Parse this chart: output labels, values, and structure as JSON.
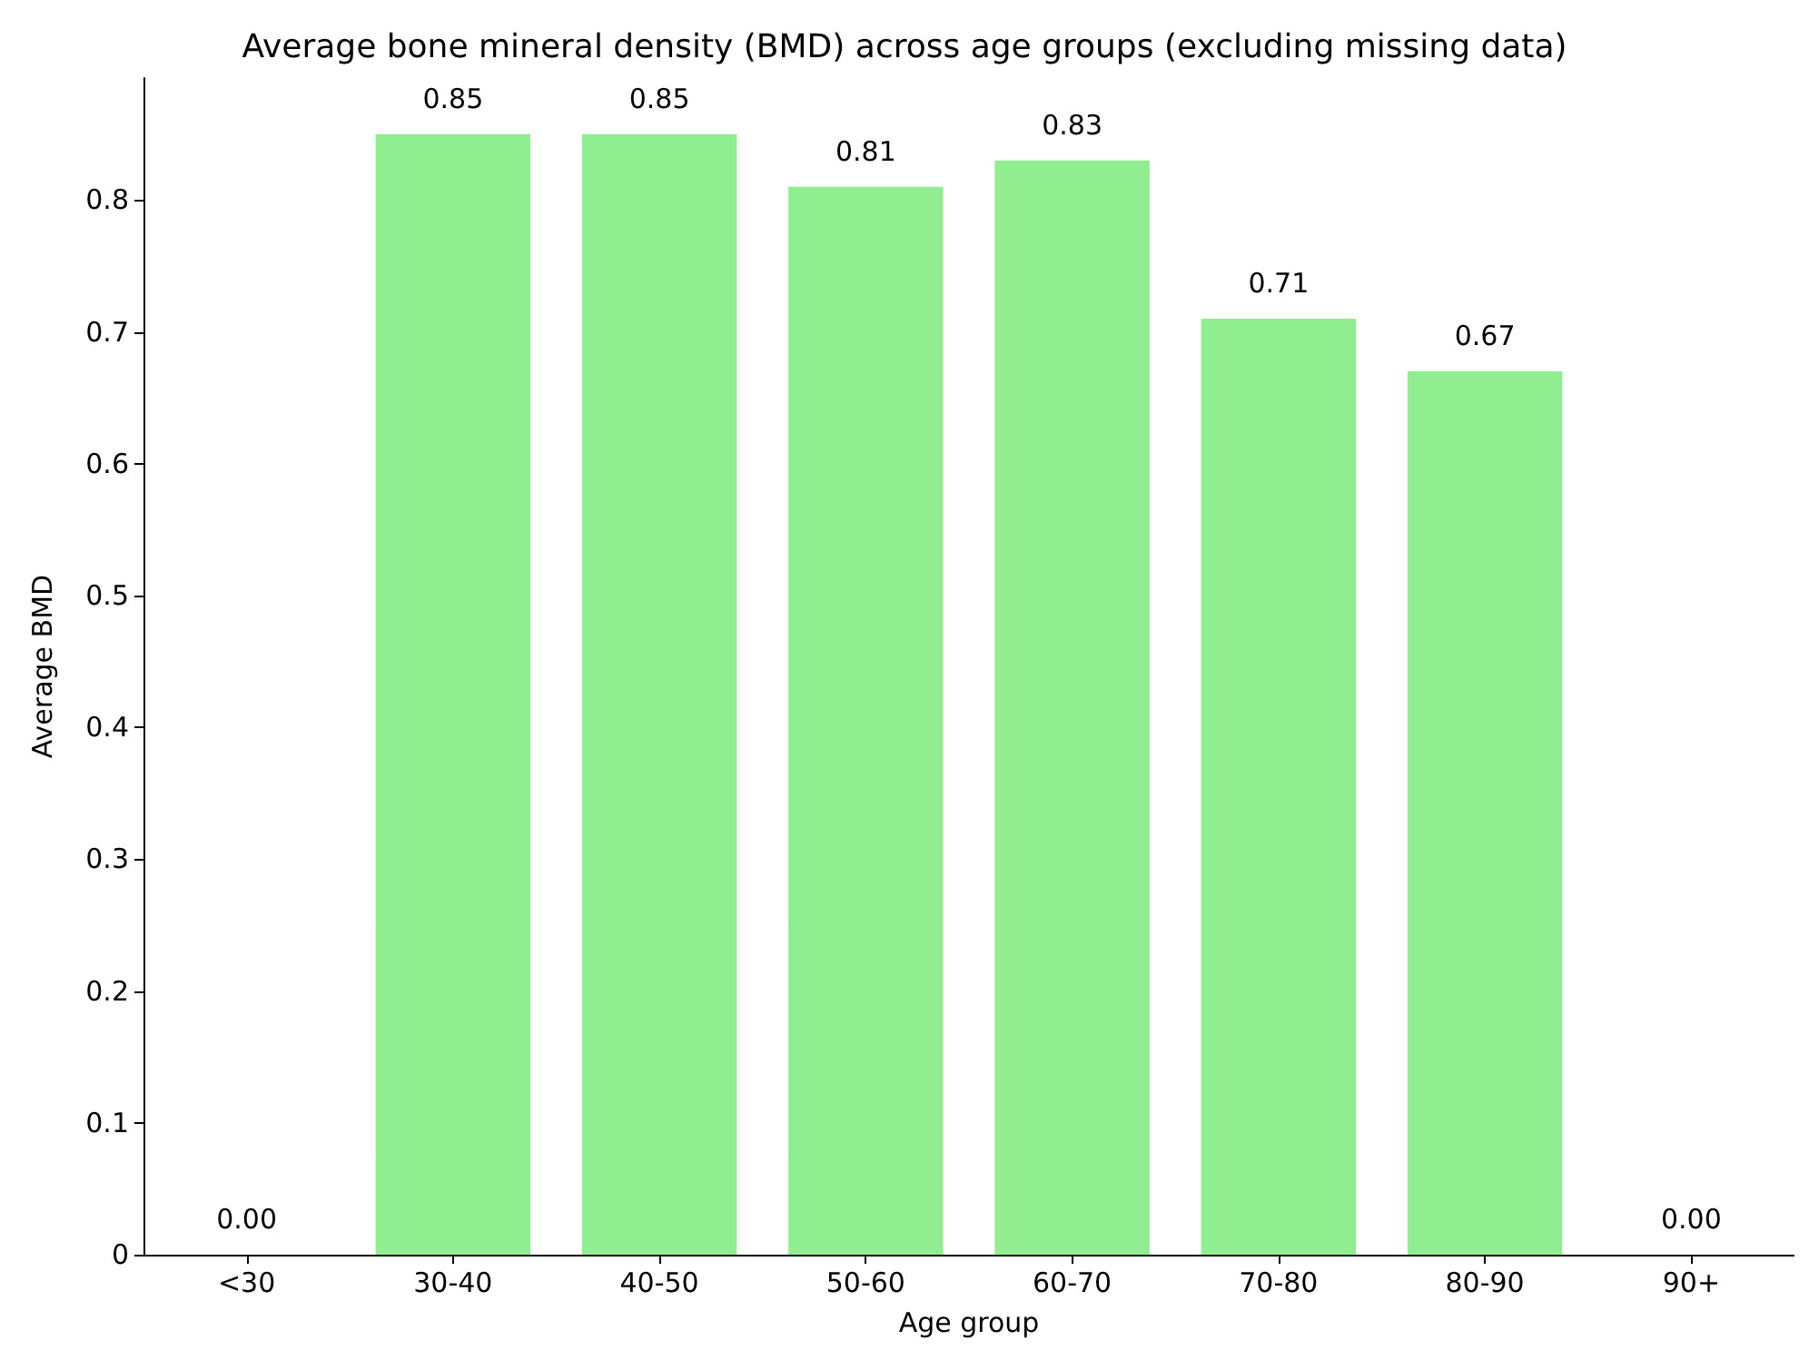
{
  "chart_data": {
    "type": "bar",
    "title": "Average bone mineral density (BMD) across age groups (excluding missing data)",
    "xlabel": "Age group",
    "ylabel": "Average BMD",
    "categories": [
      "<30",
      "30-40",
      "40-50",
      "50-60",
      "60-70",
      "70-80",
      "80-90",
      "90+"
    ],
    "values": [
      0,
      0.85,
      0.85,
      0.81,
      0.83,
      0.71,
      0.67,
      0
    ],
    "value_labels": [
      "0.00",
      "0.85",
      "0.85",
      "0.81",
      "0.83",
      "0.71",
      "0.67",
      "0.00"
    ],
    "color": "#90ee90",
    "ylim": [
      0,
      0.8925
    ],
    "yticks": [
      0,
      0.1,
      0.2,
      0.3,
      0.4,
      0.5,
      0.6,
      0.7,
      0.8
    ],
    "grid": false
  }
}
